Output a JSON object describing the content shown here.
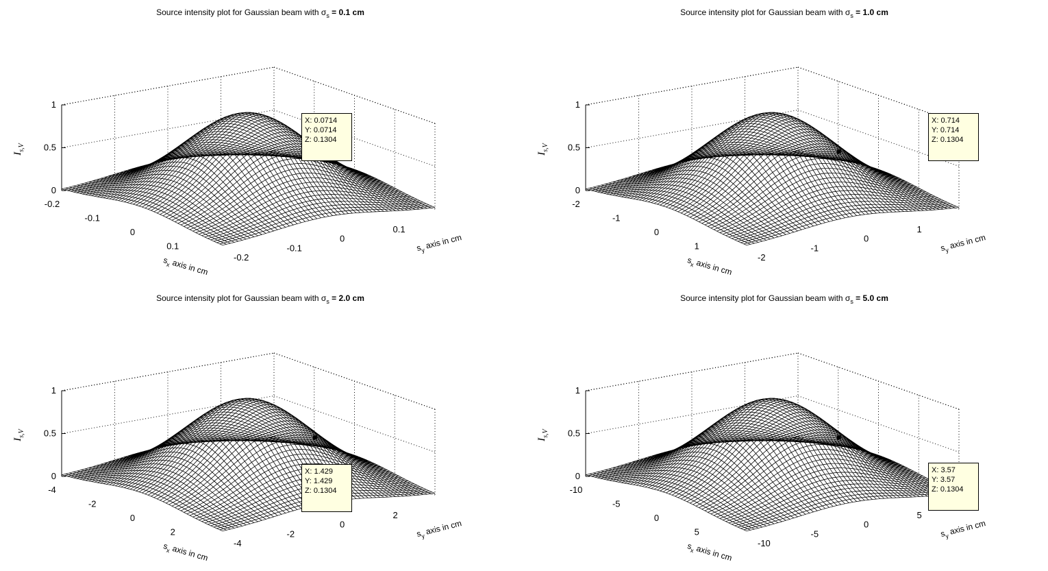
{
  "chart_data": [
    {
      "type": "surface",
      "title_prefix": "Source intensity plot for Gaussian beam with σ",
      "title_sub": "s",
      "title_suffix": " = 0.1 cm",
      "zlabel": "I",
      "zlabel_sub": "s,V",
      "xlabel": "axis in cm",
      "xlabel_var": "s",
      "xlabel_sub": "x",
      "ylabel": "axis in cm",
      "ylabel_var": "s",
      "ylabel_sub": "y",
      "xticks": [
        "-0.2",
        "-0.1",
        "0",
        "0.1"
      ],
      "yticks": [
        "-0.2",
        "-0.1",
        "0",
        "0.1"
      ],
      "zticks": [
        "0",
        "0.5",
        "1"
      ],
      "xlim": [
        -0.2,
        0.2
      ],
      "ylim": [
        -0.2,
        0.2
      ],
      "zlim": [
        0,
        1
      ],
      "sigma": 0.1,
      "peak": 1,
      "datatip": {
        "x": "X: 0.0714",
        "y": "Y: 0.0714",
        "z": "Z: 0.1304"
      }
    },
    {
      "type": "surface",
      "title_prefix": "Source intensity plot for Gaussian beam with σ",
      "title_sub": "s",
      "title_suffix": " = 1.0 cm",
      "zlabel": "I",
      "zlabel_sub": "s,V",
      "xlabel": "axis in cm",
      "xlabel_var": "s",
      "xlabel_sub": "x",
      "ylabel": "axis in cm",
      "ylabel_var": "s",
      "ylabel_sub": "y",
      "xticks": [
        "-2",
        "-1",
        "0",
        "1"
      ],
      "yticks": [
        "-2",
        "-1",
        "0",
        "1"
      ],
      "zticks": [
        "0",
        "0.5",
        "1"
      ],
      "xlim": [
        -2,
        2
      ],
      "ylim": [
        -2,
        2
      ],
      "zlim": [
        0,
        1
      ],
      "sigma": 1.0,
      "peak": 1,
      "datatip": {
        "x": "X: 0.714",
        "y": "Y: 0.714",
        "z": "Z: 0.1304"
      }
    },
    {
      "type": "surface",
      "title_prefix": "Source intensity plot for Gaussian beam with σ",
      "title_sub": "s",
      "title_suffix": " = 2.0 cm",
      "zlabel": "I",
      "zlabel_sub": "s,V",
      "xlabel": "axis in cm",
      "xlabel_var": "s",
      "xlabel_sub": "x",
      "ylabel": "axis in cm",
      "ylabel_var": "s",
      "ylabel_sub": "y",
      "xticks": [
        "-4",
        "-2",
        "0",
        "2"
      ],
      "yticks": [
        "-4",
        "-2",
        "0",
        "2"
      ],
      "zticks": [
        "0",
        "0.5",
        "1"
      ],
      "xlim": [
        -4,
        4
      ],
      "ylim": [
        -4,
        4
      ],
      "zlim": [
        0,
        1
      ],
      "sigma": 2.0,
      "peak": 1,
      "datatip": {
        "x": "X: 1.429",
        "y": "Y: 1.429",
        "z": "Z: 0.1304"
      }
    },
    {
      "type": "surface",
      "title_prefix": "Source intensity plot for Gaussian beam with σ",
      "title_sub": "s",
      "title_suffix": " = 5.0 cm",
      "zlabel": "I",
      "zlabel_sub": "s,V",
      "xlabel": "axis in cm",
      "xlabel_var": "s",
      "xlabel_sub": "x",
      "ylabel": "axis in cm",
      "ylabel_var": "s",
      "ylabel_sub": "y",
      "xticks": [
        "-10",
        "-5",
        "0",
        "5"
      ],
      "yticks": [
        "-10",
        "-5",
        "0",
        "5"
      ],
      "zticks": [
        "0",
        "0.5",
        "1"
      ],
      "xlim": [
        -10,
        10
      ],
      "ylim": [
        -10,
        10
      ],
      "zlim": [
        0,
        1
      ],
      "sigma": 5.0,
      "peak": 1,
      "datatip": {
        "x": "X: 3.57",
        "y": "Y: 3.57",
        "z": "Z: 0.1304"
      }
    }
  ]
}
